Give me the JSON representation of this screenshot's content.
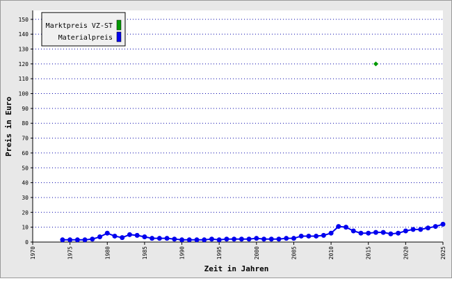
{
  "chart_data": {
    "type": "line",
    "xlabel": "Zeit in Jahren",
    "ylabel": "Preis in Euro",
    "xlim": [
      1970,
      2025
    ],
    "xticks": [
      1970,
      1975,
      1980,
      1985,
      1990,
      1995,
      2000,
      2005,
      2010,
      2015,
      2020,
      2025
    ],
    "ylim": [
      0,
      156
    ],
    "yticks": [
      0,
      10,
      20,
      30,
      40,
      50,
      60,
      70,
      80,
      90,
      100,
      110,
      120,
      130,
      140,
      150
    ],
    "grid": true,
    "legend": "upper left",
    "series": [
      {
        "name": "Marktpreis VZ-ST",
        "color": "#009900",
        "marker": "diamond",
        "line": false,
        "x": [
          2016
        ],
        "values": [
          120
        ]
      },
      {
        "name": "Materialpreis",
        "color": "#0000ee",
        "marker": "circle",
        "line": true,
        "x": [
          1974,
          1975,
          1976,
          1977,
          1978,
          1979,
          1980,
          1981,
          1982,
          1983,
          1984,
          1985,
          1986,
          1987,
          1988,
          1989,
          1990,
          1991,
          1992,
          1993,
          1994,
          1995,
          1996,
          1997,
          1998,
          1999,
          2000,
          2001,
          2002,
          2003,
          2004,
          2005,
          2006,
          2007,
          2008,
          2009,
          2010,
          2011,
          2012,
          2013,
          2014,
          2015,
          2016,
          2017,
          2018,
          2019,
          2020,
          2021,
          2022,
          2023,
          2024,
          2025
        ],
        "values": [
          1.5,
          1.5,
          1.5,
          1.5,
          2,
          3.5,
          6,
          4,
          3,
          5,
          4.5,
          3.5,
          2.5,
          2.5,
          2.5,
          2,
          1.5,
          1.5,
          1.5,
          1.5,
          2,
          1.5,
          2,
          2,
          2,
          2,
          2.5,
          2,
          2,
          2,
          2.5,
          2.5,
          4,
          4,
          4,
          4.5,
          6,
          10.5,
          10,
          7.5,
          6,
          6,
          6.5,
          6.5,
          5.5,
          6,
          7.5,
          8.5,
          8.5,
          9.5,
          10.5,
          12
        ]
      }
    ]
  }
}
